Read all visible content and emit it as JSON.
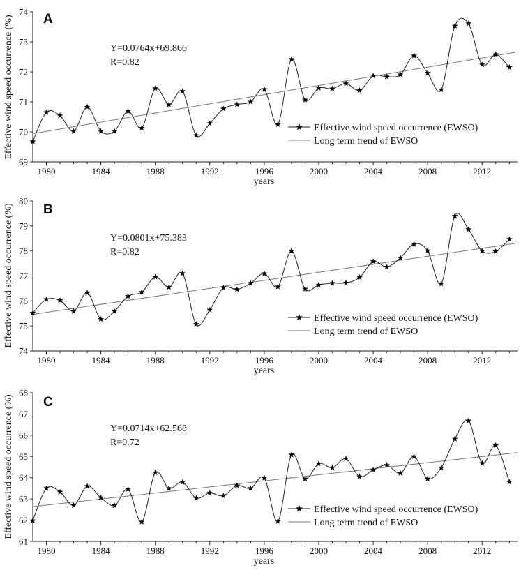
{
  "chart_data": [
    {
      "type": "line",
      "panel": "A",
      "xlabel": "years",
      "ylabel": "Effective wind speed occurrence (%)",
      "xlim": [
        1979,
        2014.6
      ],
      "ylim": [
        69,
        74
      ],
      "yticks": [
        69,
        70,
        71,
        72,
        73,
        74
      ],
      "xticks": [
        1980,
        1984,
        1988,
        1992,
        1996,
        2000,
        2004,
        2008,
        2012
      ],
      "annotation": [
        "Y=0.0764x+69.866",
        "R=0.82"
      ],
      "legend": [
        "Effective wind speed occurrence (EWSO)",
        "Long term trend of EWSO"
      ],
      "trend": {
        "slope": 0.0764,
        "intercept": 69.866
      },
      "series": [
        {
          "name": "Effective wind speed occurrence (EWSO)",
          "x": [
            1979,
            1980,
            1981,
            1982,
            1983,
            1984,
            1985,
            1986,
            1987,
            1988,
            1989,
            1990,
            1991,
            1992,
            1993,
            1994,
            1995,
            1996,
            1997,
            1998,
            1999,
            2000,
            2001,
            2002,
            2003,
            2004,
            2005,
            2006,
            2007,
            2008,
            2009,
            2010,
            2011,
            2012,
            2013,
            2014
          ],
          "values": [
            69.68,
            70.65,
            70.54,
            70.02,
            70.83,
            70.02,
            70.02,
            70.69,
            70.13,
            71.45,
            70.91,
            71.35,
            69.88,
            70.28,
            70.77,
            70.91,
            71.0,
            71.42,
            70.25,
            72.42,
            71.07,
            71.46,
            71.44,
            71.61,
            71.38,
            71.87,
            71.84,
            71.91,
            72.54,
            71.96,
            71.41,
            73.53,
            73.61,
            72.24,
            72.58,
            72.15
          ]
        }
      ]
    },
    {
      "type": "line",
      "panel": "B",
      "xlabel": "years",
      "ylabel": "Effective wind speed occurrence (%)",
      "xlim": [
        1979,
        2014.6
      ],
      "ylim": [
        74,
        80
      ],
      "yticks": [
        74,
        75,
        76,
        77,
        78,
        79,
        80
      ],
      "xticks": [
        1980,
        1984,
        1988,
        1992,
        1996,
        2000,
        2004,
        2008,
        2012
      ],
      "annotation": [
        "Y=0.0801x+75.383",
        "R=0.82"
      ],
      "legend": [
        "Effective wind speed occurrence (EWSO)",
        "Long term trend of EWSO"
      ],
      "trend": {
        "slope": 0.0801,
        "intercept": 75.383
      },
      "series": [
        {
          "name": "Effective wind speed occurrence (EWSO)",
          "x": [
            1979,
            1980,
            1981,
            1982,
            1983,
            1984,
            1985,
            1986,
            1987,
            1988,
            1989,
            1990,
            1991,
            1992,
            1993,
            1994,
            1995,
            1996,
            1997,
            1998,
            1999,
            2000,
            2001,
            2002,
            2003,
            2004,
            2005,
            2006,
            2007,
            2008,
            2009,
            2010,
            2011,
            2012,
            2013,
            2014
          ],
          "values": [
            75.52,
            76.06,
            76.02,
            75.59,
            76.32,
            75.27,
            75.59,
            76.19,
            76.35,
            76.96,
            76.55,
            77.1,
            75.07,
            75.64,
            76.53,
            76.46,
            76.71,
            77.1,
            76.57,
            78.0,
            76.48,
            76.64,
            76.71,
            76.72,
            76.94,
            77.58,
            77.36,
            77.72,
            78.28,
            78.01,
            76.69,
            79.4,
            78.86,
            78.0,
            77.98,
            78.47
          ]
        }
      ]
    },
    {
      "type": "line",
      "panel": "C",
      "xlabel": "years",
      "ylabel": "Effective wind speed occurrence (%)",
      "xlim": [
        1979,
        2014.6
      ],
      "ylim": [
        61,
        68
      ],
      "yticks": [
        61,
        62,
        63,
        64,
        65,
        66,
        67,
        68
      ],
      "xticks": [
        1980,
        1984,
        1988,
        1992,
        1996,
        2000,
        2004,
        2008,
        2012
      ],
      "annotation": [
        "Y=0.0714x+62.568",
        "R=0.72"
      ],
      "legend": [
        "Effective wind speed occurrence (EWSO)",
        "Long term trend of EWSO"
      ],
      "trend": {
        "slope": 0.0714,
        "intercept": 62.568
      },
      "series": [
        {
          "name": "Effective wind speed occurrence (EWSO)",
          "x": [
            1979,
            1980,
            1981,
            1982,
            1983,
            1984,
            1985,
            1986,
            1987,
            1988,
            1989,
            1990,
            1991,
            1992,
            1993,
            1994,
            1995,
            1996,
            1997,
            1998,
            1999,
            2000,
            2001,
            2002,
            2003,
            2004,
            2005,
            2006,
            2007,
            2008,
            2009,
            2010,
            2011,
            2012,
            2013,
            2014
          ],
          "values": [
            61.98,
            63.5,
            63.33,
            62.7,
            63.6,
            63.06,
            62.69,
            63.46,
            61.92,
            64.24,
            63.5,
            63.79,
            63.04,
            63.28,
            63.15,
            63.63,
            63.5,
            63.99,
            61.95,
            65.08,
            63.95,
            64.66,
            64.47,
            64.89,
            64.05,
            64.37,
            64.59,
            64.22,
            65.0,
            63.95,
            64.47,
            65.83,
            66.68,
            64.68,
            65.52,
            63.8
          ]
        }
      ]
    }
  ]
}
